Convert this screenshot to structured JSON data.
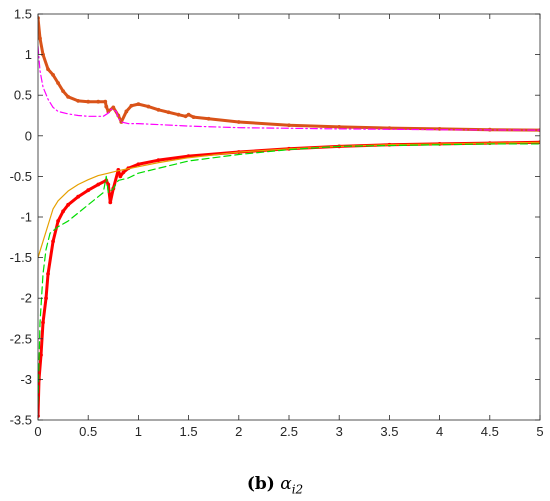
{
  "caption": {
    "label": "(b)",
    "symbol": "α",
    "subscript": "i2"
  },
  "chart_data": {
    "type": "line",
    "title": "",
    "xlabel": "",
    "ylabel": "",
    "xlim": [
      0,
      5
    ],
    "ylim": [
      -3.5,
      1.5
    ],
    "x_ticks": [
      "0",
      "0.5",
      "1",
      "1.5",
      "2",
      "2.5",
      "3",
      "3.5",
      "4",
      "4.5",
      "5"
    ],
    "y_ticks": [
      "-3.5",
      "-3",
      "-2.5",
      "-2",
      "-1.5",
      "-1",
      "-0.5",
      "0",
      "0.5",
      "1",
      "1.5"
    ],
    "grid": false,
    "legend": "none",
    "series": [
      {
        "color": "#d95319",
        "style": "solid",
        "marker": "dot",
        "width": 3,
        "points": [
          [
            0,
            1.45
          ],
          [
            0.02,
            1.2
          ],
          [
            0.05,
            1.0
          ],
          [
            0.1,
            0.82
          ],
          [
            0.15,
            0.75
          ],
          [
            0.2,
            0.65
          ],
          [
            0.25,
            0.55
          ],
          [
            0.3,
            0.48
          ],
          [
            0.4,
            0.43
          ],
          [
            0.5,
            0.42
          ],
          [
            0.6,
            0.42
          ],
          [
            0.67,
            0.42
          ],
          [
            0.68,
            0.36
          ],
          [
            0.7,
            0.3
          ],
          [
            0.75,
            0.35
          ],
          [
            0.8,
            0.25
          ],
          [
            0.83,
            0.17
          ],
          [
            0.88,
            0.3
          ],
          [
            0.93,
            0.37
          ],
          [
            1.0,
            0.39
          ],
          [
            1.1,
            0.36
          ],
          [
            1.2,
            0.32
          ],
          [
            1.3,
            0.29
          ],
          [
            1.4,
            0.26
          ],
          [
            1.47,
            0.24
          ],
          [
            1.5,
            0.26
          ],
          [
            1.55,
            0.23
          ],
          [
            1.7,
            0.21
          ],
          [
            2.0,
            0.17
          ],
          [
            2.5,
            0.13
          ],
          [
            3.0,
            0.11
          ],
          [
            3.5,
            0.095
          ],
          [
            4.0,
            0.085
          ],
          [
            4.5,
            0.075
          ],
          [
            5.0,
            0.07
          ]
        ]
      },
      {
        "color": "#ff0000",
        "style": "solid",
        "marker": "dot",
        "width": 3,
        "points": [
          [
            0,
            -3.45
          ],
          [
            0.01,
            -3.0
          ],
          [
            0.03,
            -2.7
          ],
          [
            0.05,
            -2.3
          ],
          [
            0.08,
            -2.0
          ],
          [
            0.1,
            -1.7
          ],
          [
            0.15,
            -1.3
          ],
          [
            0.2,
            -1.05
          ],
          [
            0.25,
            -0.93
          ],
          [
            0.3,
            -0.85
          ],
          [
            0.4,
            -0.75
          ],
          [
            0.5,
            -0.67
          ],
          [
            0.6,
            -0.6
          ],
          [
            0.68,
            -0.55
          ],
          [
            0.7,
            -0.6
          ],
          [
            0.72,
            -0.82
          ],
          [
            0.75,
            -0.65
          ],
          [
            0.8,
            -0.42
          ],
          [
            0.82,
            -0.5
          ],
          [
            0.85,
            -0.45
          ],
          [
            0.9,
            -0.4
          ],
          [
            1.0,
            -0.35
          ],
          [
            1.2,
            -0.3
          ],
          [
            1.5,
            -0.25
          ],
          [
            2.0,
            -0.2
          ],
          [
            2.5,
            -0.16
          ],
          [
            3.0,
            -0.13
          ],
          [
            3.5,
            -0.11
          ],
          [
            4.0,
            -0.1
          ],
          [
            4.5,
            -0.09
          ],
          [
            5.0,
            -0.08
          ]
        ]
      },
      {
        "color": "#e6a000",
        "style": "solid",
        "marker": "none",
        "width": 1.2,
        "points": [
          [
            0,
            -1.5
          ],
          [
            0.05,
            -1.3
          ],
          [
            0.1,
            -1.1
          ],
          [
            0.15,
            -0.9
          ],
          [
            0.2,
            -0.8
          ],
          [
            0.3,
            -0.68
          ],
          [
            0.4,
            -0.6
          ],
          [
            0.5,
            -0.54
          ],
          [
            0.6,
            -0.49
          ],
          [
            0.7,
            -0.46
          ],
          [
            0.8,
            -0.43
          ],
          [
            1.0,
            -0.38
          ],
          [
            1.2,
            -0.33
          ],
          [
            1.5,
            -0.27
          ],
          [
            2.0,
            -0.2
          ],
          [
            2.5,
            -0.16
          ],
          [
            3.0,
            -0.13
          ],
          [
            3.5,
            -0.11
          ],
          [
            4.0,
            -0.1
          ],
          [
            4.5,
            -0.09
          ],
          [
            5.0,
            -0.08
          ]
        ]
      },
      {
        "color": "#ff00ff",
        "style": "dashdot",
        "marker": "none",
        "width": 1.2,
        "points": [
          [
            0,
            1.1
          ],
          [
            0.02,
            0.8
          ],
          [
            0.05,
            0.6
          ],
          [
            0.1,
            0.45
          ],
          [
            0.15,
            0.35
          ],
          [
            0.2,
            0.3
          ],
          [
            0.3,
            0.27
          ],
          [
            0.4,
            0.25
          ],
          [
            0.5,
            0.24
          ],
          [
            0.65,
            0.24
          ],
          [
            0.7,
            0.28
          ],
          [
            0.73,
            0.33
          ],
          [
            0.78,
            0.3
          ],
          [
            0.8,
            0.22
          ],
          [
            0.83,
            0.17
          ],
          [
            0.9,
            0.15
          ],
          [
            1.0,
            0.15
          ],
          [
            1.5,
            0.12
          ],
          [
            2.0,
            0.1
          ],
          [
            3.0,
            0.085
          ],
          [
            4.0,
            0.075
          ],
          [
            5.0,
            0.07
          ]
        ]
      },
      {
        "color": "#00dd00",
        "style": "dashed",
        "marker": "none",
        "width": 1.2,
        "points": [
          [
            0,
            -3.3
          ],
          [
            0.02,
            -2.3
          ],
          [
            0.05,
            -1.7
          ],
          [
            0.08,
            -1.4
          ],
          [
            0.12,
            -1.2
          ],
          [
            0.2,
            -1.12
          ],
          [
            0.3,
            -1.05
          ],
          [
            0.4,
            -0.95
          ],
          [
            0.5,
            -0.85
          ],
          [
            0.6,
            -0.75
          ],
          [
            0.65,
            -0.7
          ],
          [
            0.68,
            -0.5
          ],
          [
            0.7,
            -0.7
          ],
          [
            0.75,
            -0.65
          ],
          [
            0.8,
            -0.55
          ],
          [
            0.9,
            -0.52
          ],
          [
            1.0,
            -0.46
          ],
          [
            1.2,
            -0.4
          ],
          [
            1.5,
            -0.31
          ],
          [
            2.0,
            -0.23
          ],
          [
            2.5,
            -0.17
          ],
          [
            3.0,
            -0.13
          ],
          [
            3.5,
            -0.12
          ],
          [
            4.0,
            -0.11
          ],
          [
            4.5,
            -0.1
          ],
          [
            5.0,
            -0.1
          ]
        ]
      }
    ]
  }
}
